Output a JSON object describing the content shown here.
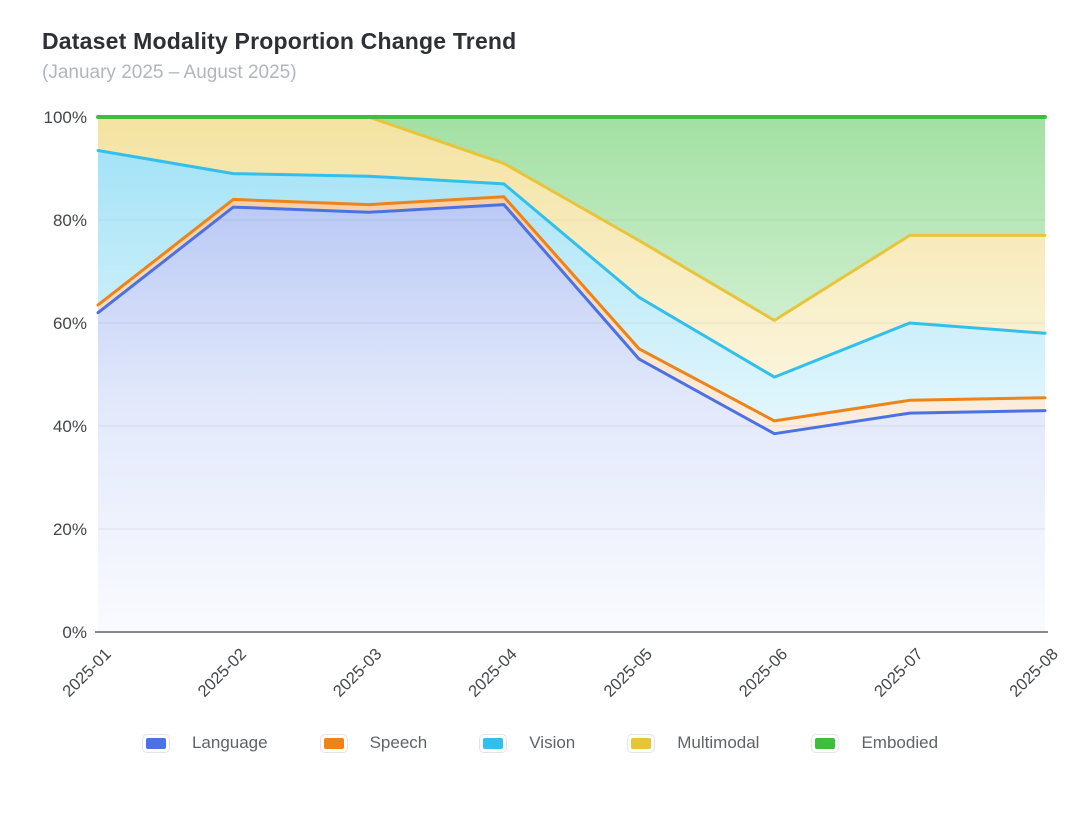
{
  "chart": {
    "title": "Dataset Modality Proportion Change Trend",
    "subtitle": "(January 2025 – August 2025)"
  },
  "chart_data": {
    "type": "area",
    "stacked": true,
    "normalized": true,
    "unit": "%",
    "title": "Dataset Modality Proportion Change Trend",
    "subtitle": "(January 2025 – August 2025)",
    "xlabel": "",
    "ylabel": "",
    "x": [
      "2025-01",
      "2025-02",
      "2025-03",
      "2025-04",
      "2025-05",
      "2025-06",
      "2025-07",
      "2025-08"
    ],
    "y_ticks": [
      "0%",
      "20%",
      "40%",
      "60%",
      "80%",
      "100%"
    ],
    "ylim": [
      0,
      100
    ],
    "grid": "horizontal",
    "legend_position": "bottom",
    "series": [
      {
        "name": "Language",
        "color": "#4B72E4",
        "values": [
          62.0,
          82.5,
          81.5,
          83.0,
          53.0,
          38.5,
          42.5,
          43.0
        ]
      },
      {
        "name": "Speech",
        "color": "#EC8419",
        "values": [
          1.5,
          1.5,
          1.5,
          1.5,
          2.0,
          2.5,
          2.5,
          2.5
        ]
      },
      {
        "name": "Vision",
        "color": "#33BFEC",
        "values": [
          30.0,
          5.0,
          5.5,
          2.5,
          10.0,
          8.5,
          15.0,
          12.5
        ]
      },
      {
        "name": "Multimodal",
        "color": "#E8C43B",
        "values": [
          6.5,
          11.0,
          11.5,
          4.0,
          11.0,
          11.0,
          17.0,
          19.0
        ]
      },
      {
        "name": "Embodied",
        "color": "#3EBE3E",
        "values": [
          0.0,
          0.0,
          0.0,
          9.0,
          24.0,
          39.5,
          23.0,
          23.0
        ]
      }
    ],
    "cumulative_tops": {
      "Language": [
        62.0,
        82.5,
        81.5,
        83.0,
        53.0,
        38.5,
        42.5,
        43.0
      ],
      "Speech": [
        63.5,
        84.0,
        83.0,
        84.5,
        55.0,
        41.0,
        45.0,
        45.5
      ],
      "Vision": [
        93.5,
        89.0,
        88.5,
        87.0,
        65.0,
        49.5,
        60.0,
        58.0
      ],
      "Multimodal": [
        100.0,
        100.0,
        100.0,
        91.0,
        76.0,
        60.5,
        77.0,
        77.0
      ],
      "Embodied": [
        100.0,
        100.0,
        100.0,
        100.0,
        100.0,
        100.0,
        100.0,
        100.0
      ]
    }
  },
  "colors": {
    "title": "#2E3033",
    "subtitle": "#B1B6BC",
    "axis_line": "#74787D",
    "gridline": "#E8EAED",
    "tick_label": "#44464A",
    "legend_label": "#606367"
  }
}
